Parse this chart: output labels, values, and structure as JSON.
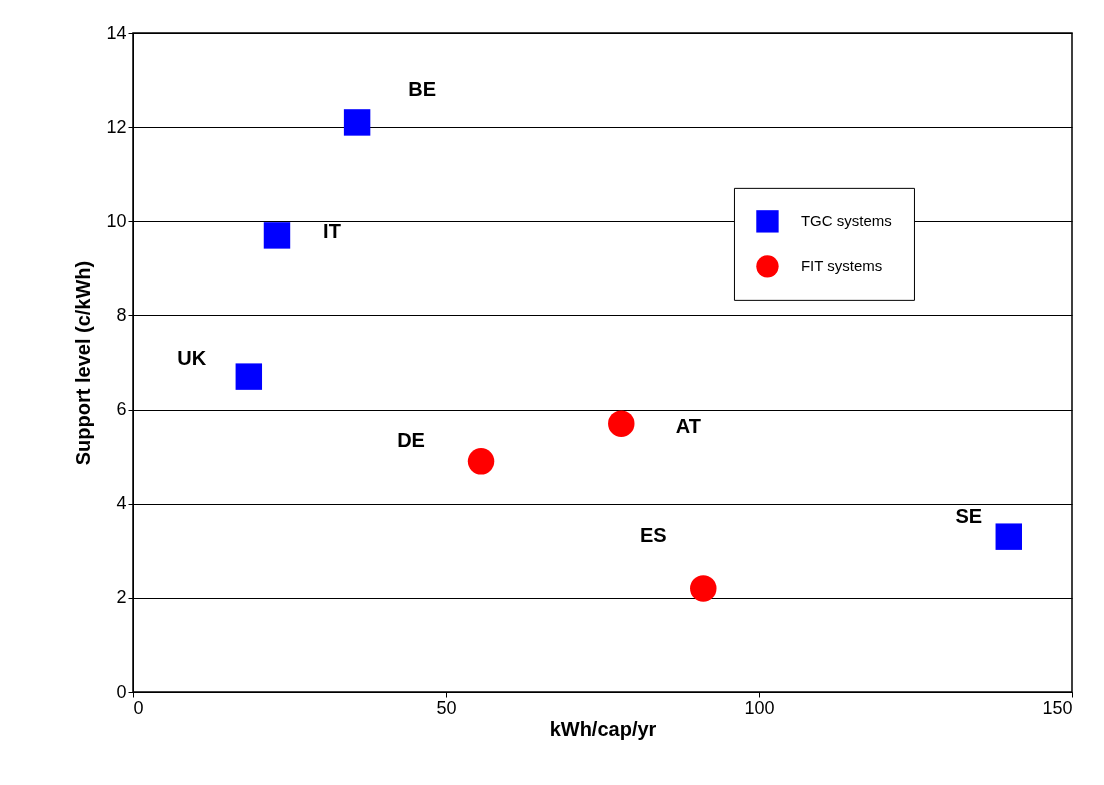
{
  "chart_data": {
    "type": "scatter",
    "xlabel": "kWh/cap/yr",
    "ylabel": "Support level (c/kWh)",
    "xlim": [
      0,
      150
    ],
    "xticks": [
      0,
      50,
      100,
      150
    ],
    "ylim": [
      0,
      14
    ],
    "yticks": [
      0,
      2,
      4,
      6,
      8,
      10,
      12,
      14
    ],
    "grid": "y",
    "legend": "top right",
    "series": [
      {
        "name": "TGC systems",
        "color": "#0000ff",
        "marker": "square",
        "x": [
          35.8,
          23.0,
          18.5,
          139.9
        ],
        "values": [
          12.1,
          9.7,
          6.7,
          3.3
        ]
      },
      {
        "name": "FIT systems",
        "color": "#ff0000",
        "marker": "circle",
        "x": [
          55.6,
          78.0,
          91.1
        ],
        "values": [
          4.9,
          5.7,
          2.2
        ]
      }
    ],
    "annotations": [
      {
        "text": "BE",
        "x": 35.8,
        "y": 12.1
      },
      {
        "text": "IT",
        "x": 23.0,
        "y": 9.7
      },
      {
        "text": "UK",
        "x": 18.5,
        "y": 6.7
      },
      {
        "text": "SE",
        "x": 139.9,
        "y": 3.3
      },
      {
        "text": "DE",
        "x": 55.6,
        "y": 4.9
      },
      {
        "text": "AT",
        "x": 78.0,
        "y": 5.7
      },
      {
        "text": "ES",
        "x": 91.1,
        "y": 2.2
      }
    ]
  }
}
